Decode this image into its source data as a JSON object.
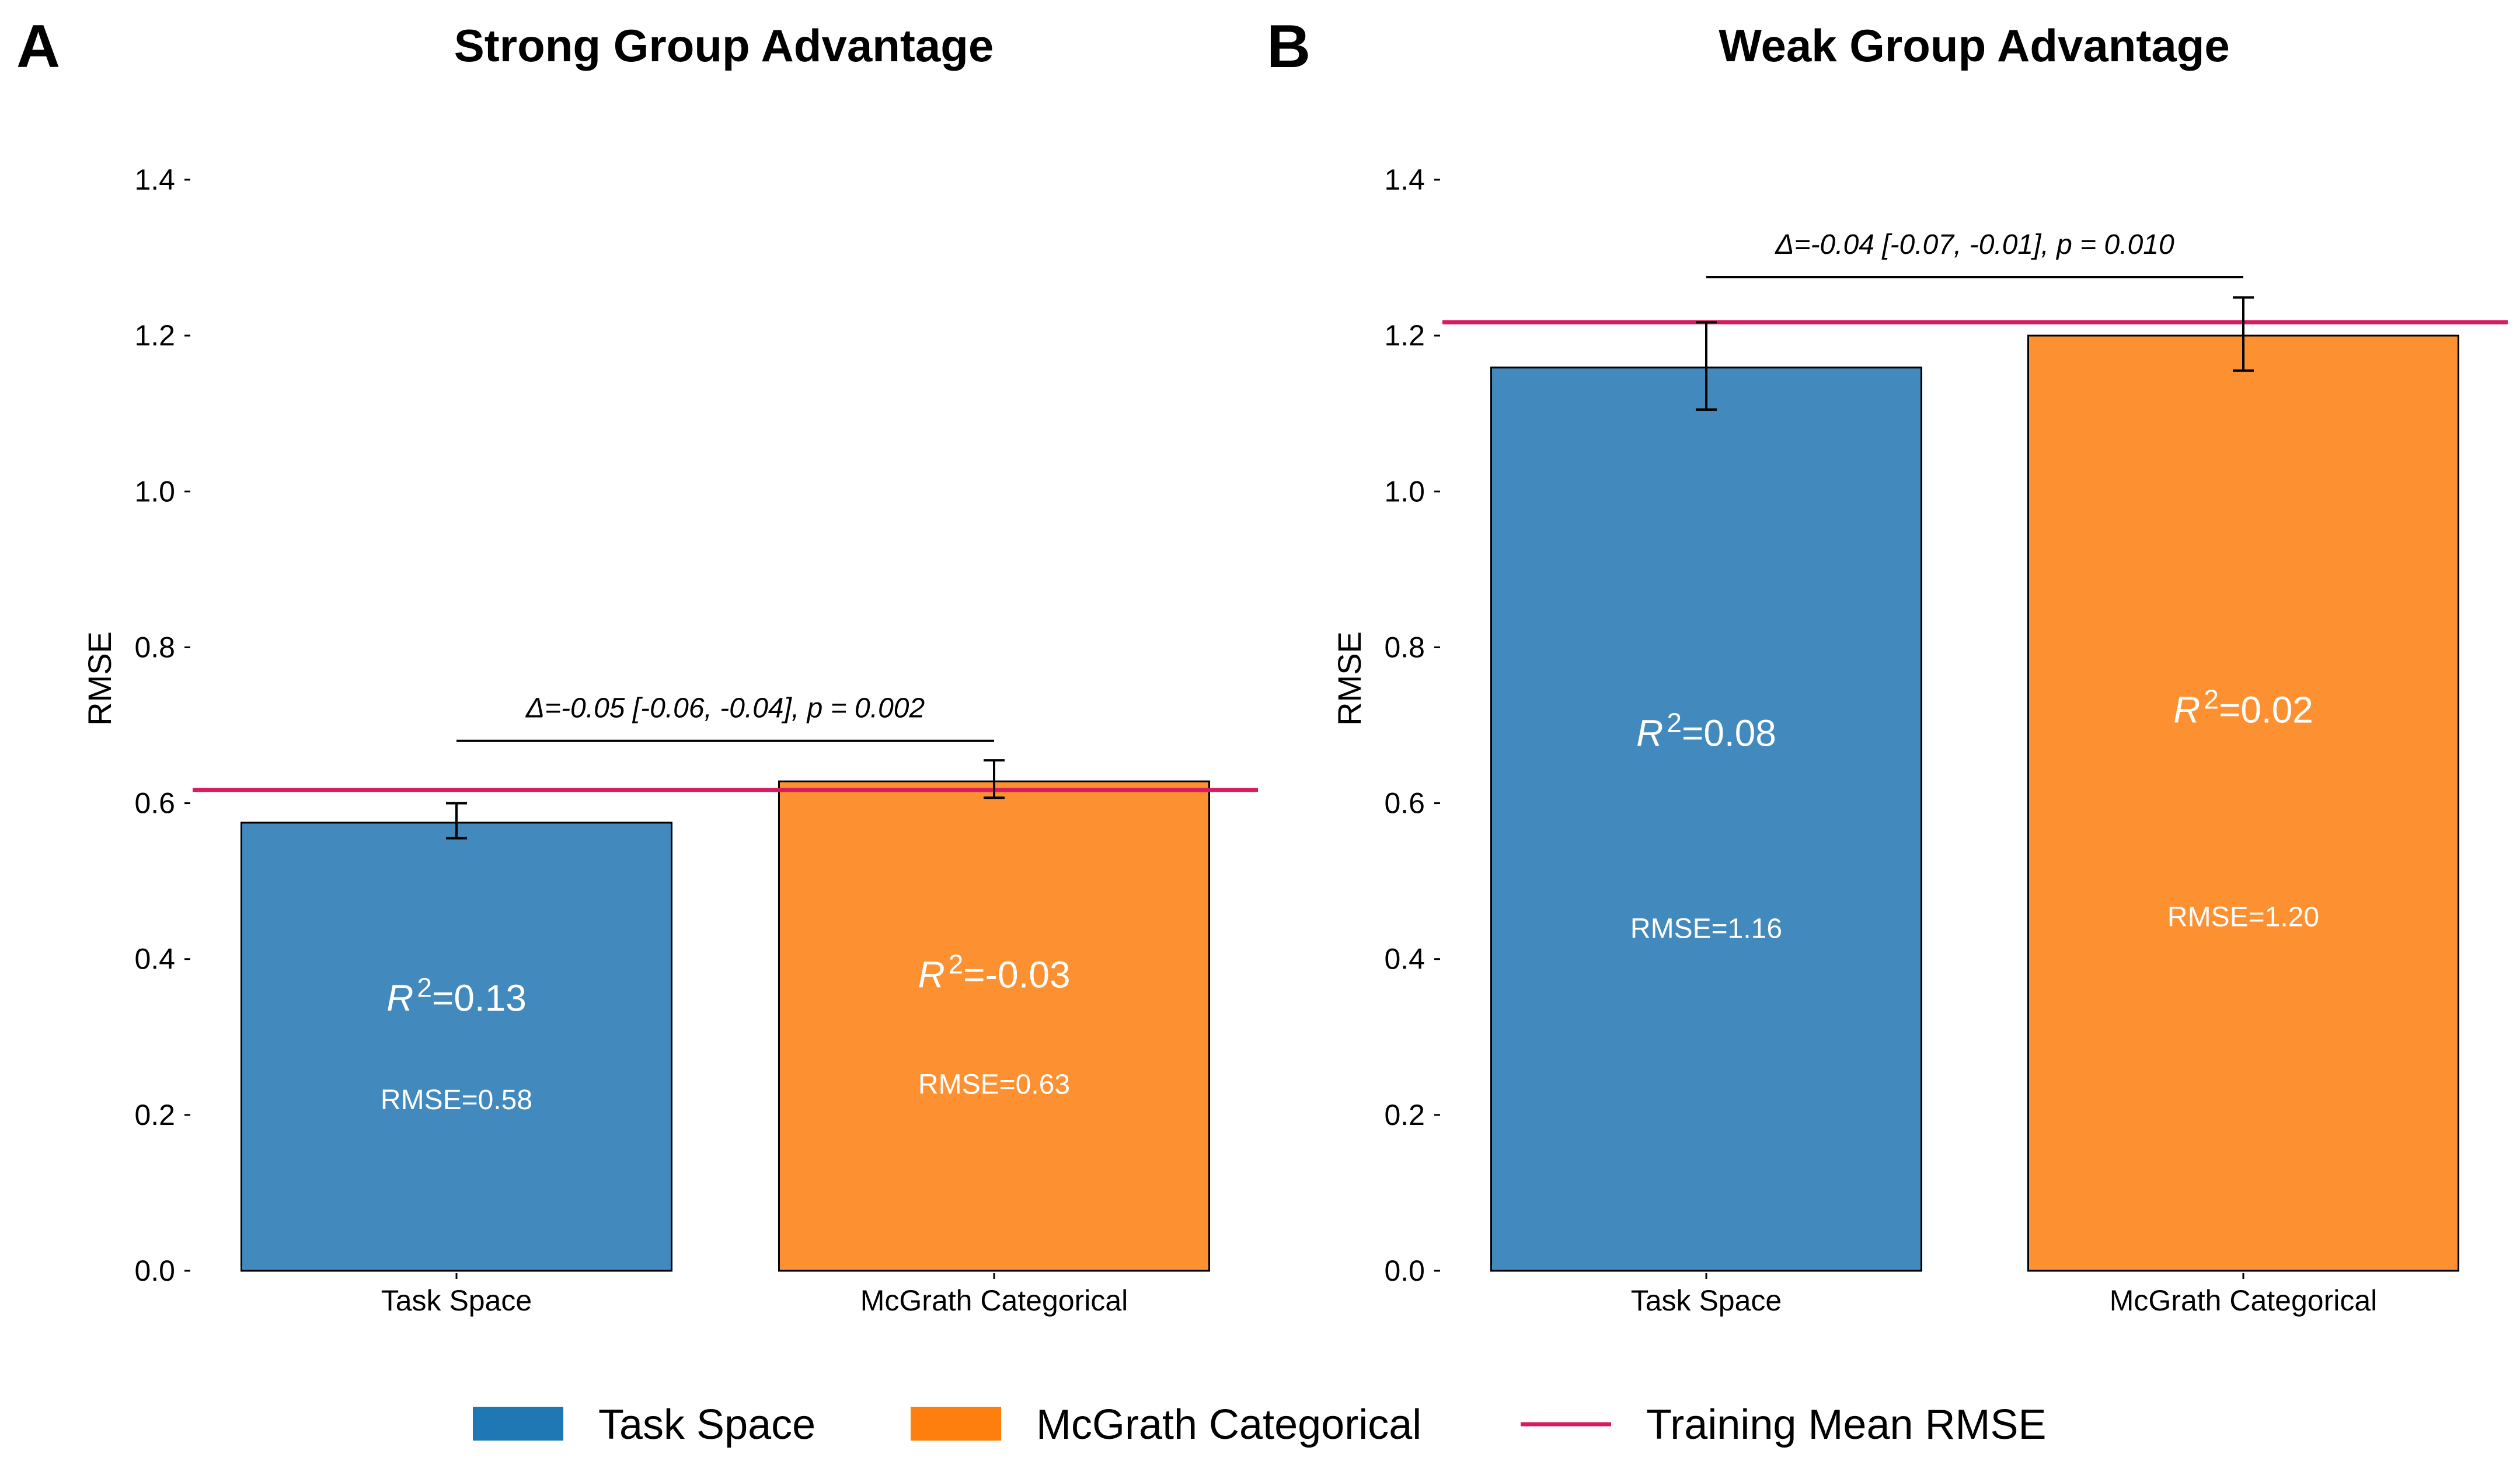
{
  "colors": {
    "task_space": "#4289be",
    "task_space_legend": "#1f77b4",
    "mcgrath": "#fd9131",
    "mcgrath_legend": "#ff7f0e",
    "training_line": "#d81b60",
    "axis": "#000000"
  },
  "chart_data": [
    {
      "panel_label": "A",
      "type": "bar",
      "title": "Strong Group Advantage",
      "ylabel": "RMSE",
      "xlabel": "",
      "categories": [
        "Task Space",
        "McGrath Categorical"
      ],
      "values": [
        0.575,
        0.628
      ],
      "error_low": [
        0.555,
        0.607
      ],
      "error_high": [
        0.6,
        0.655
      ],
      "training_mean_rmse": 0.617,
      "ylim": [
        0,
        1.4
      ],
      "yticks": [
        0.0,
        0.2,
        0.4,
        0.6,
        0.8,
        1.0,
        1.2,
        1.4
      ],
      "ytick_labels": [
        "0.0",
        "0.2",
        "0.4",
        "0.6",
        "0.8",
        "1.0",
        "1.2",
        "1.4"
      ],
      "comparison": {
        "text": "Δ=-0.05 [-0.06, -0.04], p = 0.002",
        "y": 0.68
      },
      "bar_labels": [
        {
          "r2_symbol": "R",
          "r2_exp": "2",
          "r2_value": "=0.13",
          "r2_y": 0.35,
          "rmse": "RMSE=0.58",
          "rmse_y": 0.22
        },
        {
          "r2_symbol": "R",
          "r2_exp": "2",
          "r2_value": "=-0.03",
          "r2_y": 0.38,
          "rmse": "RMSE=0.63",
          "rmse_y": 0.24
        }
      ]
    },
    {
      "panel_label": "B",
      "type": "bar",
      "title": "Weak Group Advantage",
      "ylabel": "RMSE",
      "xlabel": "",
      "categories": [
        "Task Space",
        "McGrath Categorical"
      ],
      "values": [
        1.159,
        1.2
      ],
      "error_low": [
        1.105,
        1.155
      ],
      "error_high": [
        1.217,
        1.249
      ],
      "training_mean_rmse": 1.217,
      "ylim": [
        0,
        1.4
      ],
      "yticks": [
        0.0,
        0.2,
        0.4,
        0.6,
        0.8,
        1.0,
        1.2,
        1.4
      ],
      "ytick_labels": [
        "0.0",
        "0.2",
        "0.4",
        "0.6",
        "0.8",
        "1.0",
        "1.2",
        "1.4"
      ],
      "comparison": {
        "text": "Δ=-0.04 [-0.07, -0.01], p = 0.010",
        "y": 1.275
      },
      "bar_labels": [
        {
          "r2_symbol": "R",
          "r2_exp": "2",
          "r2_value": "=0.08",
          "r2_y": 0.69,
          "rmse": "RMSE=1.16",
          "rmse_y": 0.44
        },
        {
          "r2_symbol": "R",
          "r2_exp": "2",
          "r2_value": "=0.02",
          "r2_y": 0.72,
          "rmse": "RMSE=1.20",
          "rmse_y": 0.455
        }
      ]
    }
  ],
  "legend": {
    "items": [
      {
        "label": "Task Space",
        "kind": "patch",
        "color_key": "task_space_legend"
      },
      {
        "label": "McGrath Categorical",
        "kind": "patch",
        "color_key": "mcgrath_legend"
      },
      {
        "label": "Training Mean RMSE",
        "kind": "line",
        "color_key": "training_line"
      }
    ],
    "placement": "bottom-center"
  }
}
